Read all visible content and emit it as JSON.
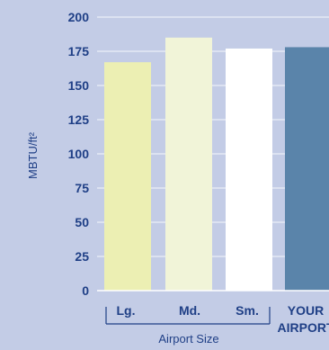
{
  "chart_data": {
    "type": "bar",
    "ylabel": "MBTU/ft²",
    "xlabel": "Airport Size",
    "ylim": [
      0,
      200
    ],
    "yticks": [
      0,
      25,
      50,
      75,
      100,
      125,
      150,
      175,
      200
    ],
    "grid": true,
    "categories": [
      "Lg.",
      "Md.",
      "Sm.",
      "YOUR AIRPORT"
    ],
    "category_lines": [
      [
        "Lg."
      ],
      [
        "Md."
      ],
      [
        "Sm."
      ],
      [
        "YOUR",
        "AIRPORT"
      ]
    ],
    "values": [
      167,
      185,
      177,
      178
    ],
    "bar_colors": [
      "#ecefb3",
      "#f1f4d8",
      "#ffffff",
      "#5a84aa"
    ]
  }
}
